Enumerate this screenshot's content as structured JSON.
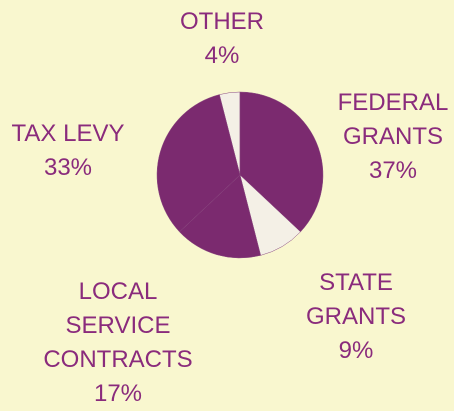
{
  "chart_data": {
    "type": "pie",
    "categories": [
      "OTHER",
      "FEDERAL GRANTS",
      "STATE GRANTS",
      "LOCAL SERVICE CONTRACTS",
      "TAX LEVY"
    ],
    "values": [
      4,
      37,
      9,
      17,
      33
    ],
    "value_labels": [
      "4%",
      "37%",
      "9%",
      "17%",
      "33%"
    ],
    "colors": [
      "#f4f0e6",
      "#7b2a6f",
      "#f4f0e6",
      "#7b2a6f",
      "#7b2a6f"
    ]
  }
}
